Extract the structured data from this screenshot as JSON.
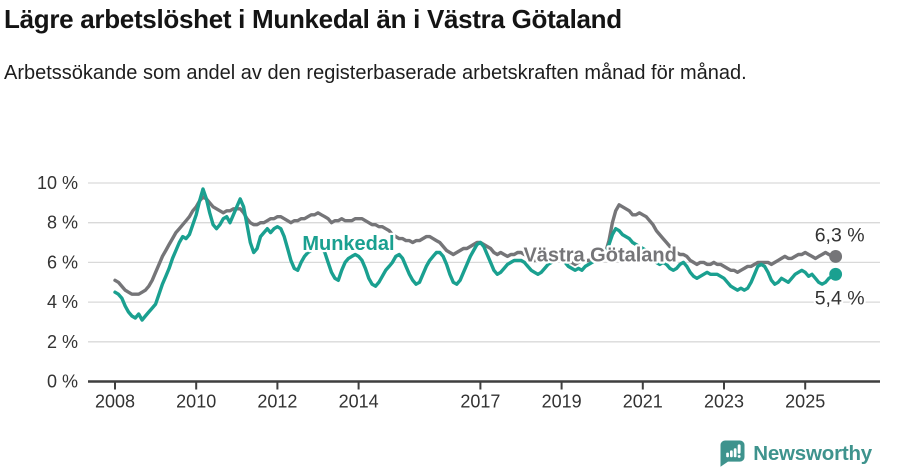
{
  "header": {
    "title": "Lägre arbetslöshet i Munkedal än i Västra Götaland",
    "subtitle": "Arbetssökande som andel av den registerbaserade arbetskraften månad för månad."
  },
  "chart_data": {
    "type": "line",
    "title": "Lägre arbetslöshet i Munkedal än i Västra Götaland",
    "subtitle": "Arbetssökande som andel av den registerbaserade arbetskraften månad för månad.",
    "unit": "%",
    "frequency": "monthly",
    "x_start": "2008-01",
    "x_end": "2025-10",
    "grid": "horizontal",
    "legend_position": "inline-labels",
    "ylim": [
      0,
      10
    ],
    "y_ticks": [
      {
        "value": 0,
        "label": "0 %"
      },
      {
        "value": 2,
        "label": "2 %"
      },
      {
        "value": 4,
        "label": "4 %"
      },
      {
        "value": 6,
        "label": "6 %"
      },
      {
        "value": 8,
        "label": "8 %"
      },
      {
        "value": 10,
        "label": "10 %"
      }
    ],
    "x_ticks": [
      {
        "value": 2008,
        "label": "2008"
      },
      {
        "value": 2010,
        "label": "2010"
      },
      {
        "value": 2012,
        "label": "2012"
      },
      {
        "value": 2014,
        "label": "2014"
      },
      {
        "value": 2017,
        "label": "2017"
      },
      {
        "value": 2019,
        "label": "2019"
      },
      {
        "value": 2021,
        "label": "2021"
      },
      {
        "value": 2023,
        "label": "2023"
      },
      {
        "value": 2025,
        "label": "2025"
      }
    ],
    "series": [
      {
        "name": "Västra Götaland",
        "color": "#757578",
        "end_label": "6,3 %",
        "end_value": 6.3,
        "label_pos": {
          "x": 2019.95,
          "y": 6.05
        },
        "end_label_offset": {
          "dx": 4,
          "dy": -15
        },
        "values": [
          5.1,
          5.0,
          4.8,
          4.6,
          4.5,
          4.4,
          4.4,
          4.4,
          4.5,
          4.6,
          4.8,
          5.1,
          5.5,
          5.9,
          6.3,
          6.6,
          6.9,
          7.2,
          7.5,
          7.7,
          7.9,
          8.1,
          8.3,
          8.6,
          8.8,
          9.1,
          9.3,
          9.2,
          9.0,
          8.8,
          8.7,
          8.6,
          8.5,
          8.6,
          8.6,
          8.7,
          8.7,
          8.7,
          8.5,
          8.2,
          8.0,
          7.9,
          7.9,
          8.0,
          8.0,
          8.1,
          8.2,
          8.2,
          8.3,
          8.3,
          8.2,
          8.1,
          8.0,
          8.1,
          8.1,
          8.2,
          8.2,
          8.3,
          8.4,
          8.4,
          8.5,
          8.4,
          8.3,
          8.2,
          8.0,
          8.1,
          8.1,
          8.2,
          8.1,
          8.1,
          8.1,
          8.2,
          8.2,
          8.2,
          8.1,
          8.0,
          7.9,
          7.9,
          7.8,
          7.8,
          7.7,
          7.6,
          7.4,
          7.3,
          7.2,
          7.2,
          7.1,
          7.1,
          7.0,
          7.1,
          7.1,
          7.2,
          7.3,
          7.3,
          7.2,
          7.1,
          7.0,
          6.8,
          6.6,
          6.5,
          6.4,
          6.5,
          6.6,
          6.7,
          6.7,
          6.8,
          6.9,
          7.0,
          7.0,
          6.9,
          6.8,
          6.7,
          6.5,
          6.4,
          6.5,
          6.4,
          6.3,
          6.4,
          6.4,
          6.5,
          6.5,
          6.4,
          6.3,
          6.2,
          6.1,
          6.2,
          6.2,
          6.1,
          6.1,
          6.1,
          6.2,
          6.2,
          6.2,
          6.1,
          6.0,
          6.0,
          5.9,
          6.0,
          6.1,
          6.1,
          6.1,
          6.2,
          6.2,
          6.3,
          6.4,
          6.5,
          7.1,
          8.0,
          8.6,
          8.9,
          8.8,
          8.7,
          8.6,
          8.4,
          8.4,
          8.5,
          8.4,
          8.3,
          8.1,
          7.9,
          7.6,
          7.4,
          7.2,
          7.0,
          6.8,
          6.6,
          6.5,
          6.4,
          6.4,
          6.3,
          6.1,
          6.0,
          5.9,
          6.0,
          6.0,
          5.9,
          5.9,
          6.0,
          5.9,
          5.9,
          5.8,
          5.7,
          5.6,
          5.6,
          5.5,
          5.6,
          5.7,
          5.8,
          5.8,
          5.9,
          6.0,
          6.0,
          6.0,
          6.0,
          5.9,
          6.0,
          6.1,
          6.2,
          6.3,
          6.2,
          6.2,
          6.3,
          6.4,
          6.4,
          6.5,
          6.4,
          6.3,
          6.2,
          6.3,
          6.4,
          6.5,
          6.4,
          6.3,
          6.3
        ]
      },
      {
        "name": "Munkedal",
        "color": "#1AA090",
        "end_label": "5,4 %",
        "end_value": 5.4,
        "label_pos": {
          "x": 2013.75,
          "y": 6.62
        },
        "end_label_offset": {
          "dx": 4,
          "dy": 30
        },
        "values": [
          4.5,
          4.4,
          4.2,
          3.8,
          3.5,
          3.3,
          3.2,
          3.4,
          3.1,
          3.3,
          3.5,
          3.7,
          3.9,
          4.4,
          4.9,
          5.3,
          5.7,
          6.2,
          6.6,
          7.0,
          7.3,
          7.2,
          7.4,
          7.9,
          8.4,
          9.1,
          9.7,
          9.2,
          8.5,
          7.9,
          7.7,
          7.9,
          8.2,
          8.3,
          8.0,
          8.4,
          8.8,
          9.2,
          8.8,
          7.9,
          7.0,
          6.5,
          6.7,
          7.3,
          7.5,
          7.7,
          7.5,
          7.7,
          7.8,
          7.7,
          7.3,
          6.7,
          6.1,
          5.7,
          5.6,
          6.0,
          6.3,
          6.5,
          6.6,
          6.9,
          7.0,
          6.8,
          6.5,
          6.0,
          5.5,
          5.2,
          5.1,
          5.6,
          6.0,
          6.2,
          6.3,
          6.4,
          6.3,
          6.1,
          5.7,
          5.2,
          4.9,
          4.8,
          5.0,
          5.3,
          5.6,
          5.8,
          6.0,
          6.3,
          6.4,
          6.2,
          5.8,
          5.4,
          5.1,
          4.9,
          5.0,
          5.4,
          5.8,
          6.1,
          6.3,
          6.5,
          6.5,
          6.3,
          5.9,
          5.4,
          5.0,
          4.9,
          5.1,
          5.5,
          5.9,
          6.3,
          6.6,
          6.9,
          7.0,
          6.8,
          6.4,
          6.0,
          5.6,
          5.4,
          5.5,
          5.7,
          5.9,
          6.0,
          6.1,
          6.1,
          6.1,
          6.0,
          5.8,
          5.6,
          5.5,
          5.4,
          5.5,
          5.7,
          5.9,
          6.0,
          6.1,
          6.2,
          6.2,
          6.0,
          5.8,
          5.7,
          5.6,
          5.7,
          5.6,
          5.8,
          5.9,
          6.0,
          6.1,
          6.1,
          6.2,
          6.4,
          6.9,
          7.4,
          7.7,
          7.6,
          7.4,
          7.3,
          7.2,
          7.0,
          6.9,
          6.8,
          6.7,
          6.6,
          6.4,
          6.2,
          6.0,
          5.9,
          6.0,
          5.9,
          5.7,
          5.6,
          5.7,
          5.9,
          6.0,
          5.8,
          5.5,
          5.3,
          5.2,
          5.3,
          5.4,
          5.5,
          5.4,
          5.4,
          5.4,
          5.3,
          5.2,
          5.0,
          4.8,
          4.7,
          4.6,
          4.7,
          4.6,
          4.7,
          5.0,
          5.4,
          5.8,
          5.9,
          5.8,
          5.5,
          5.1,
          4.9,
          5.0,
          5.2,
          5.1,
          5.0,
          5.2,
          5.4,
          5.5,
          5.6,
          5.5,
          5.3,
          5.4,
          5.2,
          5.0,
          4.9,
          5.0,
          5.2,
          5.3,
          5.4
        ]
      }
    ],
    "colors": {
      "munkedal": "#1AA090",
      "vastra_gotaland": "#757578",
      "gridline": "#d9d9d9",
      "axis": "#3f3f3f",
      "tick_label": "#333333",
      "annotation_text": "#333333"
    }
  },
  "footer": {
    "brand": "Newsworthy",
    "brand_color": "#3E938D",
    "logo_icon": "bar-chart-exclamation-pin-icon"
  }
}
